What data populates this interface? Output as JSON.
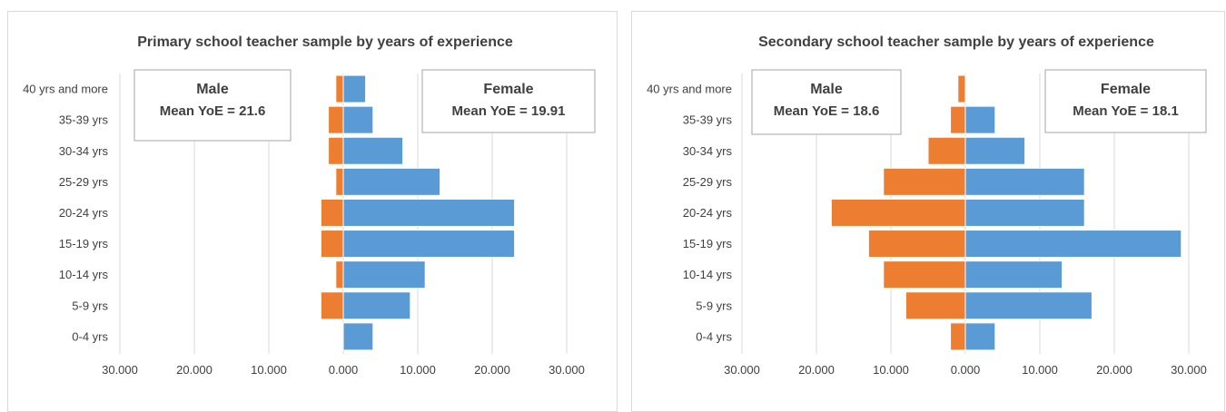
{
  "chart_data": [
    {
      "type": "bar",
      "title": "Primary school teacher sample by years of experience",
      "categories": [
        "40 yrs and more",
        "35-39 yrs",
        "30-34 yrs",
        "25-29 yrs",
        "20-24 yrs",
        "15-19 yrs",
        "10-14 yrs",
        "5-9 yrs",
        "0-4 yrs"
      ],
      "series": [
        {
          "name": "Male",
          "color": "#ED7D31",
          "values": [
            -1,
            -2,
            -2,
            -1,
            -3,
            -3,
            -1,
            -3,
            0
          ]
        },
        {
          "name": "Female",
          "color": "#5B9BD5",
          "values": [
            3,
            4,
            8,
            13,
            23,
            23,
            11,
            9,
            4
          ]
        }
      ],
      "xlim": [
        -30,
        30
      ],
      "xticks": [
        -30,
        -20,
        -10,
        0,
        10,
        20,
        30
      ],
      "xtick_labels": [
        "30.000",
        "20.000",
        "10.000",
        "0.000",
        "10.000",
        "20.000",
        "30.000"
      ],
      "grid": true,
      "annotations": {
        "male": {
          "label": "Male",
          "stat": "Mean YoE = 21.6"
        },
        "female": {
          "label": "Female",
          "stat": "Mean YoE = 19.91"
        }
      }
    },
    {
      "type": "bar",
      "title": "Secondary school teacher sample by years of experience",
      "categories": [
        "40 yrs and more",
        "35-39 yrs",
        "30-34 yrs",
        "25-29 yrs",
        "20-24 yrs",
        "15-19 yrs",
        "10-14 yrs",
        "5-9 yrs",
        "0-4 yrs"
      ],
      "series": [
        {
          "name": "Male",
          "color": "#ED7D31",
          "values": [
            -1,
            -2,
            -5,
            -11,
            -18,
            -13,
            -11,
            -8,
            -2
          ]
        },
        {
          "name": "Female",
          "color": "#5B9BD5",
          "values": [
            0,
            4,
            8,
            16,
            16,
            29,
            13,
            17,
            4
          ]
        }
      ],
      "xlim": [
        -30,
        30
      ],
      "xticks": [
        -30,
        -20,
        -10,
        0,
        10,
        20,
        30
      ],
      "xtick_labels": [
        "30.000",
        "20.000",
        "10.000",
        "0.000",
        "10.000",
        "20.000",
        "30.000"
      ],
      "grid": true,
      "annotations": {
        "male": {
          "label": "Male",
          "stat": "Mean YoE = 18.6"
        },
        "female": {
          "label": "Female",
          "stat": "Mean YoE = 18.1"
        }
      }
    }
  ]
}
